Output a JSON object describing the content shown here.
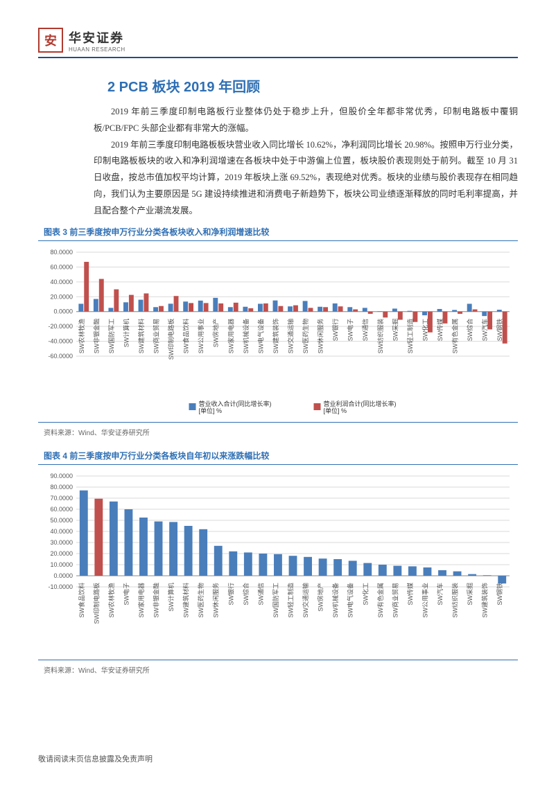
{
  "header": {
    "company_cn": "华安证券",
    "company_en": "HUAAN RESEARCH",
    "logo_char": "安"
  },
  "section_title": "2 PCB 板块 2019 年回顾",
  "paragraphs": [
    "2019 年前三季度印制电路板行业整体仍处于稳步上升，但股价全年都非常优秀，印制电路板中覆铜板/PCB/FPC 头部企业都有非常大的涨幅。",
    "2019 年前三季度印制电路板板块营业收入同比增长 10.62%，净利润同比增长 20.98%。按照申万行业分类，印制电路板板块的收入和净利润增速在各板块中处于中游偏上位置，板块股价表现则处于前列。截至 10 月 31 日收盘，按总市值加权平均计算，2019 年板块上涨 69.52%，表现绝对优秀。板块的业绩与股价表现存在相同趋向，我们认为主要原因是 5G 建设持续推进和消费电子新趋势下，板块公司业绩逐渐释放的同时毛利率提高，并且配合整个产业潮流发展。"
  ],
  "chart3": {
    "caption": "图表 3 前三季度按申万行业分类各板块收入和净利润增速比较",
    "source": "资料来源：Wind、华安证券研究所",
    "type": "bar",
    "colors": {
      "series1": "#4a7ebb",
      "series2": "#c0504d",
      "highlight": "#be4b48",
      "grid": "#d9d9d9",
      "axis": "#888888"
    },
    "legend": [
      "营业收入合计 (同比增长率)\n[单位] %",
      "营业利润合计 (同比增长率)\n[单位] %"
    ],
    "ylim": [
      -60,
      80
    ],
    "ytick_step": 20,
    "highlight_idx": 7,
    "categories": [
      "SW农林牧渔",
      "SW非银金融",
      "SW国防军工",
      "SW计算机",
      "SW建筑材料",
      "SW商业贸易",
      "SW印制电路板",
      "SW食品饮料",
      "SW公用事业",
      "SW房地产",
      "SW家用电器",
      "SW机械设备",
      "SW电气设备",
      "SW建筑装饰",
      "SW交通运输",
      "SW医药生物",
      "SW休闲服务",
      "SW银行",
      "SW电子",
      "SW通信",
      "SW纺织服装",
      "SW采掘",
      "SW轻工制造",
      "SW化工",
      "SW传媒",
      "SW有色金属",
      "SW综合",
      "SW汽车",
      "SW钢铁"
    ],
    "series1": [
      10.5,
      17.0,
      5.0,
      12.5,
      16.0,
      6.0,
      10.6,
      13.5,
      14.8,
      18.5,
      6.0,
      6.5,
      10.5,
      15.0,
      7.0,
      14.3,
      6.5,
      11.0,
      6.0,
      5.0,
      0.5,
      4.0,
      1.0,
      -5.0,
      3.5,
      2.2,
      10.5,
      -6.0,
      2.5
    ],
    "series2": [
      67.0,
      44.0,
      30.0,
      22.5,
      24.5,
      7.5,
      21.0,
      11.5,
      11.5,
      11.0,
      12.0,
      4.5,
      11.0,
      7.5,
      8.5,
      5.0,
      6.0,
      7.0,
      3.0,
      -3.0,
      -8.0,
      -11.0,
      -14.0,
      -28.0,
      -16.0,
      -3.0,
      3.0,
      -24.0,
      -43.0
    ]
  },
  "chart4": {
    "caption": "图表 4 前三季度按申万行业分类各板块自年初以来涨跌幅比较",
    "source": "资料来源：Wind、华安证券研究所",
    "type": "bar",
    "colors": {
      "series1": "#4a7ebb",
      "highlight": "#c0504d",
      "grid": "#d9d9d9",
      "axis": "#888888"
    },
    "ylim": [
      -10,
      90
    ],
    "ytick_step": 10,
    "highlight_idx": 1,
    "categories": [
      "SW食品饮料",
      "SW印制电路板",
      "SW农林牧渔",
      "SW电子",
      "SW家用电器",
      "SW非银金融",
      "SW计算机",
      "SW建筑材料",
      "SW医药生物",
      "SW休闲服务",
      "SW银行",
      "SW综合",
      "SW通信",
      "SW国防军工",
      "SW轻工制造",
      "SW交通运输",
      "SW房地产",
      "SW机械设备",
      "SW电气设备",
      "SW化工",
      "SW有色金属",
      "SW商业贸易",
      "SW传媒",
      "SW公用事业",
      "SW汽车",
      "SW纺织服装",
      "SW采掘",
      "SW建筑装饰",
      "SW钢铁"
    ],
    "values": [
      77.0,
      69.5,
      67.0,
      60.0,
      52.5,
      49.0,
      48.5,
      45.0,
      42.0,
      27.0,
      22.0,
      21.0,
      20.0,
      19.5,
      18.0,
      17.0,
      15.5,
      15.0,
      13.5,
      11.5,
      10.0,
      9.0,
      8.5,
      7.5,
      5.0,
      4.0,
      1.5,
      0.5,
      -7.0
    ]
  },
  "footer": "敬请阅读末页信息披露及免责声明"
}
